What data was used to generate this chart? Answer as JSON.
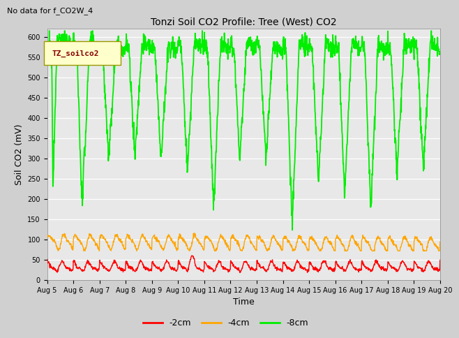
{
  "title": "Tonzi Soil CO2 Profile: Tree (West) CO2",
  "subtitle": "No data for f_CO2W_4",
  "ylabel": "Soil CO2 (mV)",
  "xlabel": "Time",
  "legend_label": "TZ_soilco2",
  "ylim": [
    0,
    620
  ],
  "yticks": [
    0,
    50,
    100,
    150,
    200,
    250,
    300,
    350,
    400,
    450,
    500,
    550,
    600
  ],
  "x_labels": [
    "Aug 5",
    "Aug 6",
    "Aug 7",
    "Aug 8",
    "Aug 9",
    "Aug 10",
    "Aug 11",
    "Aug 12",
    "Aug 13",
    "Aug 14",
    "Aug 15",
    "Aug 16",
    "Aug 17",
    "Aug 18",
    "Aug 19",
    "Aug 20"
  ],
  "colors": {
    "neg2cm": "#ff0000",
    "neg4cm": "#ffa500",
    "neg8cm": "#00ee00",
    "fig_bg": "#d0d0d0",
    "plot_bg": "#e8e8e8",
    "grid": "#ffffff",
    "legend_box_face": "#ffffcc",
    "legend_box_edge": "#999900",
    "legend_text": "#880000",
    "subtitle": "#000000",
    "title": "#000000",
    "axes_label": "#000000",
    "tick_label": "#000000"
  },
  "line_widths": {
    "neg2cm": 1.0,
    "neg4cm": 1.0,
    "neg8cm": 1.3
  },
  "title_fontsize": 10,
  "subtitle_fontsize": 8,
  "axis_label_fontsize": 9,
  "tick_fontsize": 7,
  "legend_fontsize": 9
}
